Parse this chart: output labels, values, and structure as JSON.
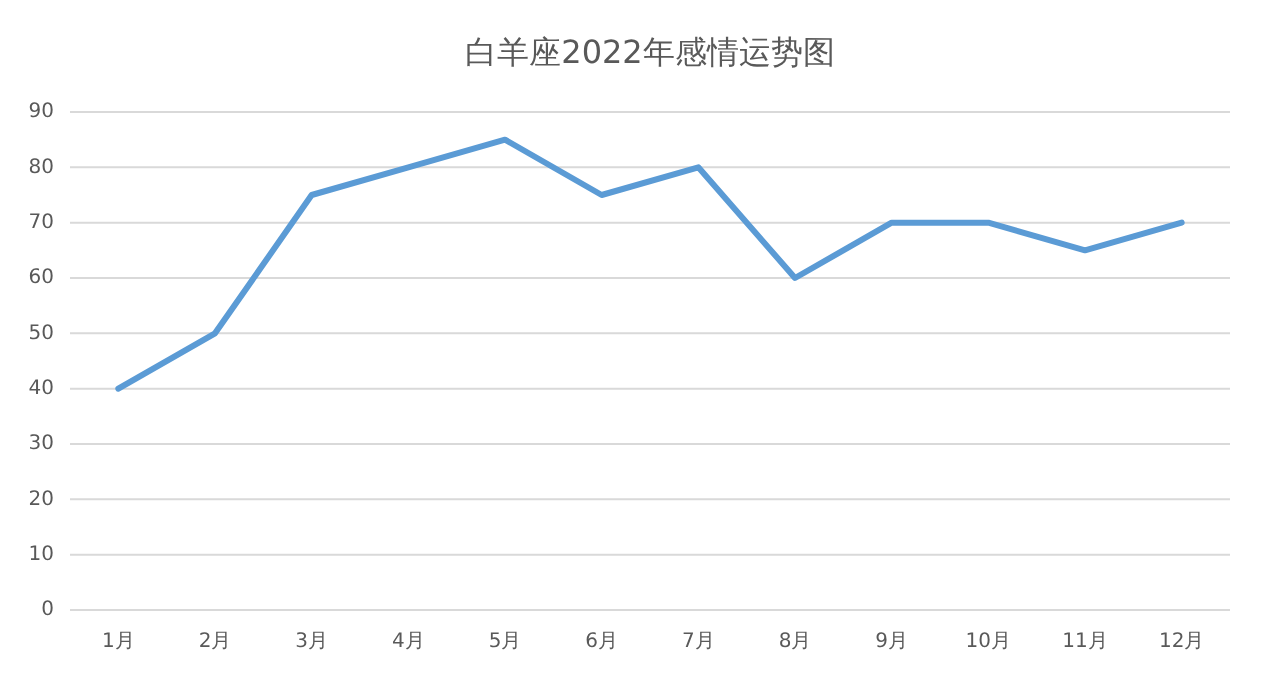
{
  "chart_data": {
    "type": "line",
    "title": "白羊座2022年感情运势图",
    "categories": [
      "1月",
      "2月",
      "3月",
      "4月",
      "5月",
      "6月",
      "7月",
      "8月",
      "9月",
      "10月",
      "11月",
      "12月"
    ],
    "values": [
      40,
      50,
      75,
      80,
      85,
      75,
      80,
      60,
      70,
      70,
      65,
      70
    ],
    "color": "#5b9bd5",
    "ylim": [
      0,
      90
    ],
    "yticks": [
      0,
      10,
      20,
      30,
      40,
      50,
      60,
      70,
      80,
      90
    ],
    "grid": "y"
  }
}
